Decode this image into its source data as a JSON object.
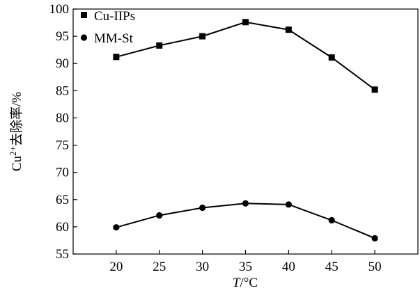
{
  "chart_data": {
    "type": "line",
    "xlabel_italic": "T",
    "xlabel_unit": "/°C",
    "ylabel_prefix": "Cu",
    "ylabel_sup": "2+",
    "ylabel_suffix": "去除率/%",
    "x": [
      20,
      25,
      30,
      35,
      40,
      45,
      50
    ],
    "xlim": [
      15,
      55
    ],
    "ylim": [
      55,
      100
    ],
    "xticks": [
      20,
      25,
      30,
      35,
      40,
      45,
      50
    ],
    "yticks": [
      55,
      60,
      65,
      70,
      75,
      80,
      85,
      90,
      95,
      100
    ],
    "grid": false,
    "legend_position": "top-left",
    "series": [
      {
        "name": "Cu-IIPs",
        "marker": "square",
        "values": [
          91.2,
          93.3,
          95.0,
          97.6,
          96.2,
          91.1,
          85.2
        ]
      },
      {
        "name": "MM-St",
        "marker": "circle",
        "values": [
          59.9,
          62.1,
          63.5,
          64.3,
          64.1,
          61.2,
          57.9
        ]
      }
    ]
  }
}
